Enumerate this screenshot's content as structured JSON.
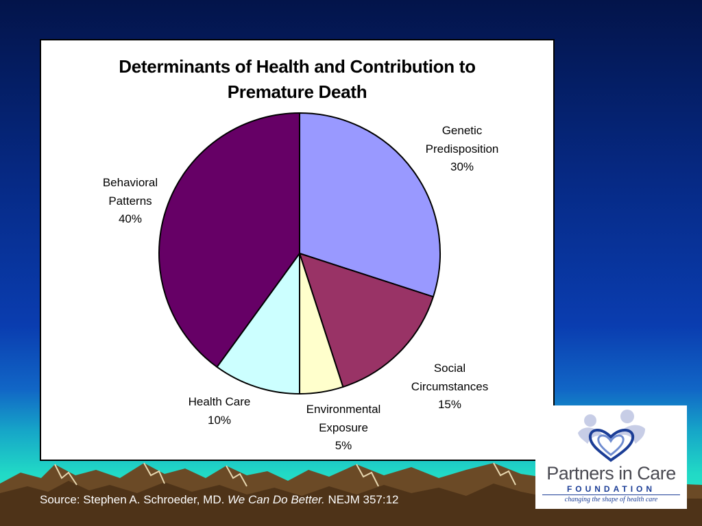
{
  "chart_data": {
    "type": "pie",
    "title": "Determinants of Health and Contribution to\nPremature Death",
    "slices": [
      {
        "label": "Genetic\nPredisposition",
        "value": 30,
        "value_label": "30%",
        "color": "#9999ff"
      },
      {
        "label": "Social\nCircumstances",
        "value": 15,
        "value_label": "15%",
        "color": "#993366"
      },
      {
        "label": "Environmental\nExposure",
        "value": 5,
        "value_label": "5%",
        "color": "#ffffcc"
      },
      {
        "label": "Health Care",
        "value": 10,
        "value_label": "10%",
        "color": "#ccffff"
      },
      {
        "label": "Behavioral\nPatterns",
        "value": 40,
        "value_label": "40%",
        "color": "#660066"
      }
    ]
  },
  "source": {
    "prefix": "Source: Stephen A. Schroeder, MD. ",
    "italic": "We Can Do Better.",
    "suffix": " NEJM 357:12"
  },
  "logo": {
    "name": "Partners in Care",
    "subtitle": "FOUNDATION",
    "tagline": "changing the shape of health care"
  },
  "colors": {
    "background_top": "#03144a",
    "background_bottom": "#2bf0c8",
    "logo_blue": "#1b3d96"
  }
}
